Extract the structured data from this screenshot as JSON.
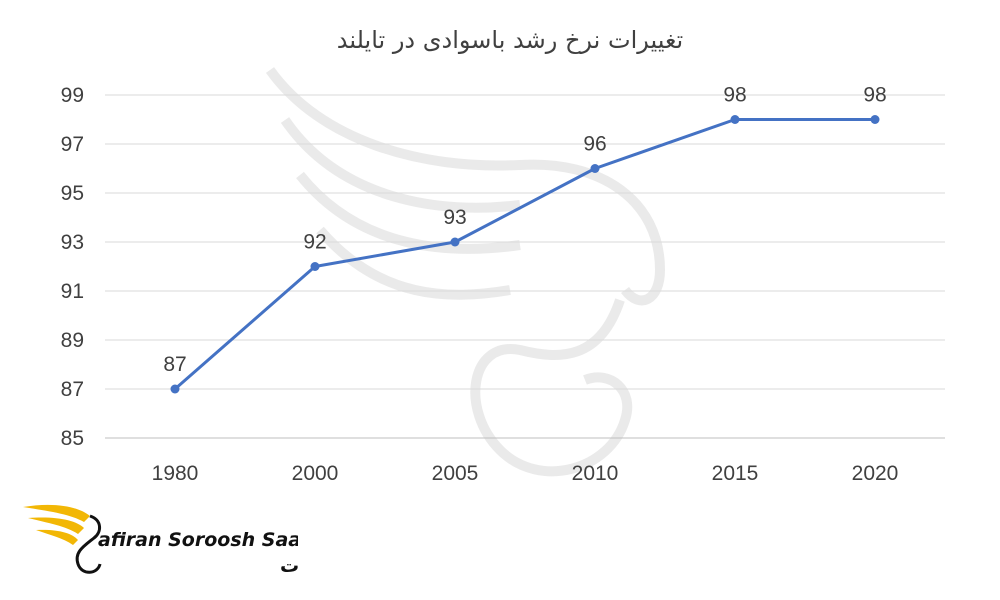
{
  "chart_data": {
    "type": "line",
    "title": "تغییرات نرخ رشد باسوادی در تایلند",
    "categories": [
      "1980",
      "2000",
      "2005",
      "2010",
      "2015",
      "2020"
    ],
    "series": [
      {
        "values": [
          87,
          92,
          93,
          96,
          98,
          98
        ],
        "color": "#4472c4"
      }
    ],
    "data_labels": [
      "87",
      "92",
      "93",
      "96",
      "98",
      "98"
    ],
    "y_ticks": [
      "85",
      "87",
      "89",
      "91",
      "93",
      "95",
      "97",
      "99"
    ],
    "ylim": [
      85,
      99
    ],
    "grid": true,
    "legend": "none",
    "xlabel": "",
    "ylabel": ""
  },
  "logo": {
    "text_en": "afiran Soroosh Saadat",
    "text_fa": "سفیران سروش سعادت",
    "color": "#f2b705"
  }
}
